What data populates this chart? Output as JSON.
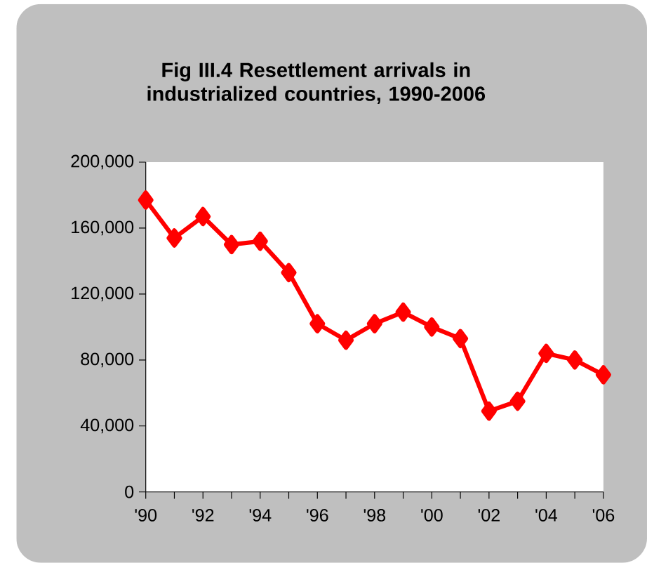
{
  "chart_data": {
    "type": "line",
    "title": "Fig III.4 Resettlement arrivals in industrialized countries, 1990-2006",
    "categories": [
      "'90",
      null,
      "'92",
      null,
      "'94",
      null,
      "'96",
      null,
      "'98",
      null,
      "'00",
      null,
      "'02",
      null,
      "'04",
      null,
      "'06"
    ],
    "series": [
      {
        "color": "#ff0000",
        "values": [
          177000,
          154000,
          167000,
          150000,
          152000,
          133000,
          102000,
          92000,
          102000,
          109000,
          100000,
          93000,
          49000,
          55000,
          84000,
          80000,
          71000
        ]
      }
    ],
    "ylim": [
      0,
      200000
    ],
    "yticks": [
      {
        "value": 0,
        "label": "0"
      },
      {
        "value": 40000,
        "label": "40,000"
      },
      {
        "value": 80000,
        "label": "80,000"
      },
      {
        "value": 120000,
        "label": "120,000"
      },
      {
        "value": 160000,
        "label": "160,000"
      },
      {
        "value": 200000,
        "label": "200,000"
      }
    ],
    "grid": false,
    "marker": "diamond",
    "line_style": "solid"
  }
}
